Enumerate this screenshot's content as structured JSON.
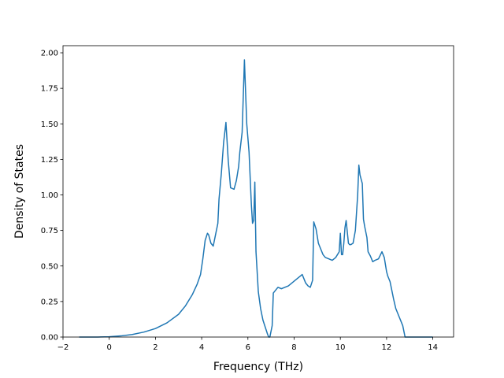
{
  "chart_data": {
    "type": "line",
    "title": "",
    "xlabel": "Frequency (THz)",
    "ylabel": "Density of States",
    "xlim": [
      -2.0,
      14.9
    ],
    "ylim": [
      0.0,
      2.05
    ],
    "xticks": [
      -2,
      0,
      2,
      4,
      6,
      8,
      10,
      12,
      14
    ],
    "xtick_labels": [
      "−2",
      "0",
      "2",
      "4",
      "6",
      "8",
      "10",
      "12",
      "14"
    ],
    "yticks": [
      0.0,
      0.25,
      0.5,
      0.75,
      1.0,
      1.25,
      1.5,
      1.75,
      2.0
    ],
    "ytick_labels": [
      "0.00",
      "0.25",
      "0.50",
      "0.75",
      "1.00",
      "1.25",
      "1.50",
      "1.75",
      "2.00"
    ],
    "grid": false,
    "colors": {
      "line": "#1f77b4"
    },
    "series": [
      {
        "x": [
          -1.3,
          -0.5,
          0,
          0.5,
          1.0,
          1.5,
          2.0,
          2.5,
          3.0,
          3.3,
          3.6,
          3.8,
          3.95,
          4.05,
          4.15,
          4.25,
          4.3,
          4.4,
          4.5,
          4.6,
          4.7,
          4.75,
          4.85,
          4.95,
          5.05,
          5.15,
          5.25,
          5.4,
          5.5,
          5.6,
          5.65,
          5.75,
          5.85,
          5.95,
          6.05,
          6.15,
          6.2,
          6.25,
          6.3,
          6.35,
          6.45,
          6.55,
          6.65,
          6.75,
          6.85,
          6.9,
          6.95,
          7.05,
          7.1,
          7.2,
          7.3,
          7.45,
          7.6,
          7.75,
          7.9,
          8.05,
          8.2,
          8.35,
          8.5,
          8.6,
          8.7,
          8.8,
          8.85,
          8.95,
          9.05,
          9.15,
          9.25,
          9.35,
          9.5,
          9.65,
          9.8,
          9.95,
          10.0,
          10.05,
          10.1,
          10.15,
          10.2,
          10.25,
          10.35,
          10.4,
          10.45,
          10.55,
          10.65,
          10.75,
          10.8,
          10.85,
          10.95,
          11.0,
          11.05,
          11.15,
          11.2,
          11.3,
          11.4,
          11.5,
          11.65,
          11.8,
          11.9,
          12.0,
          12.05,
          12.15,
          12.2,
          12.3,
          12.4,
          12.5,
          12.6,
          12.7,
          12.8,
          12.9,
          13.0,
          13.5,
          14.0
        ],
        "y": [
          0.0,
          0.0,
          0.002,
          0.008,
          0.018,
          0.035,
          0.06,
          0.1,
          0.16,
          0.22,
          0.3,
          0.37,
          0.44,
          0.55,
          0.68,
          0.73,
          0.72,
          0.66,
          0.64,
          0.72,
          0.8,
          0.97,
          1.15,
          1.37,
          1.51,
          1.24,
          1.05,
          1.04,
          1.1,
          1.2,
          1.3,
          1.44,
          1.95,
          1.5,
          1.3,
          0.93,
          0.8,
          0.82,
          1.09,
          0.6,
          0.32,
          0.2,
          0.12,
          0.07,
          0.02,
          0.0,
          0.0,
          0.08,
          0.31,
          0.33,
          0.35,
          0.34,
          0.35,
          0.36,
          0.38,
          0.4,
          0.42,
          0.44,
          0.38,
          0.36,
          0.35,
          0.4,
          0.81,
          0.76,
          0.66,
          0.62,
          0.58,
          0.56,
          0.55,
          0.54,
          0.56,
          0.6,
          0.73,
          0.58,
          0.58,
          0.66,
          0.77,
          0.82,
          0.66,
          0.65,
          0.65,
          0.66,
          0.75,
          1.0,
          1.21,
          1.14,
          1.08,
          0.83,
          0.78,
          0.7,
          0.6,
          0.57,
          0.53,
          0.54,
          0.55,
          0.6,
          0.56,
          0.46,
          0.43,
          0.39,
          0.35,
          0.27,
          0.2,
          0.16,
          0.12,
          0.08,
          0.0,
          0.0,
          0.0,
          0.0,
          0.0
        ]
      }
    ]
  }
}
